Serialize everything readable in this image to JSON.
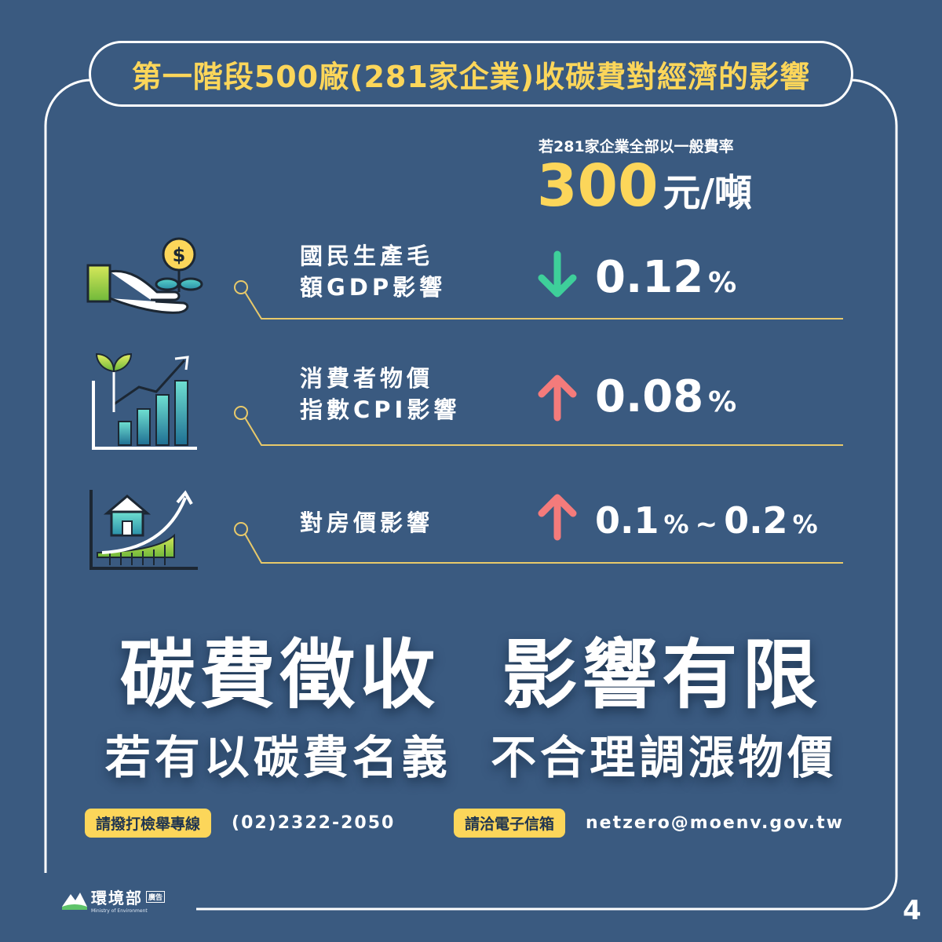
{
  "title": "第一階段500廠(281家企業)收碳費對經濟的影響",
  "rate": {
    "caption": "若281家企業全部以一般費率",
    "amount": "300",
    "unit": "元/噸"
  },
  "rows": [
    {
      "label_line1": "國民生產毛",
      "label_line2": "額GDP影響",
      "direction": "down",
      "value": "0.12",
      "unit": "%",
      "icon": "money-plant-hand-icon",
      "arrow_color": "#3ecf9a"
    },
    {
      "label_line1": "消費者物價",
      "label_line2": "指數CPI影響",
      "direction": "up",
      "value": "0.08",
      "unit": "%",
      "icon": "growth-chart-icon",
      "arrow_color": "#f47b7b"
    },
    {
      "label_line1": "對房價影響",
      "direction": "up",
      "value_from": "0.1",
      "value_to": "0.2",
      "unit": "%",
      "separator": "~",
      "icon": "house-price-icon",
      "arrow_color": "#f47b7b"
    }
  ],
  "headline1": "碳費徵收  影響有限",
  "headline2": "若有以碳費名義  不合理調漲物價",
  "contacts": [
    {
      "tag": "請撥打檢舉專線",
      "value": "(02)2322-2050"
    },
    {
      "tag": "請洽電子信箱",
      "value": "netzero@moenv.gov.tw"
    }
  ],
  "logo": {
    "name": "環境部",
    "badge": "廣告",
    "subtitle": "Ministry of Environment"
  },
  "page_number": "4",
  "colors": {
    "background": "#3a5a80",
    "accent_yellow": "#fcd65a",
    "down_arrow": "#3ecf9a",
    "up_arrow": "#f47b7b",
    "divider": "#e8c96a"
  }
}
